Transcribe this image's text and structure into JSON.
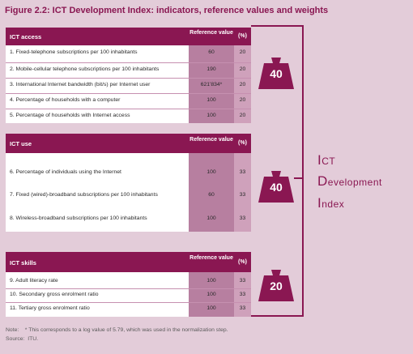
{
  "title": "Figure 2.2: ICT Development Index: indicators, reference values and weights",
  "columns": {
    "reference_value": "Reference value",
    "percent": "(%)"
  },
  "access": {
    "name": "ICT access",
    "rows": [
      {
        "label": "1. Fixed-telephone subscriptions per 100 inhabitants",
        "ref": "60",
        "pct": "20"
      },
      {
        "label": "2. Mobile-cellular telephone subscriptions per 100 inhabitants",
        "ref": "190",
        "pct": "20"
      },
      {
        "label": "3. International Internet bandwidth (bit/s) per Internet user",
        "ref": "621'834*",
        "pct": "20"
      },
      {
        "label": "4. Percentage of households with a computer",
        "ref": "100",
        "pct": "20"
      },
      {
        "label": "5. Percentage of households with Internet access",
        "ref": "100",
        "pct": "20"
      }
    ],
    "weight": "40"
  },
  "use": {
    "name": "ICT use",
    "rows": [
      {
        "label": "6. Percentage of individuals using the Internet",
        "ref": "100",
        "pct": "33"
      },
      {
        "label": "7. Fixed (wired)-broadband subscriptions per 100 inhabitants",
        "ref": "60",
        "pct": "33"
      },
      {
        "label": "8. Wireless-broadband subscriptions per 100 inhabitants",
        "ref": "100",
        "pct": "33"
      }
    ],
    "weight": "40"
  },
  "skills": {
    "name": "ICT skills",
    "rows": [
      {
        "label": "9.  Adult literacy rate",
        "ref": "100",
        "pct": "33"
      },
      {
        "label": "10. Secondary gross enrolment ratio",
        "ref": "100",
        "pct": "33"
      },
      {
        "label": "11. Tertiary gross enrolment ratio",
        "ref": "100",
        "pct": "33"
      }
    ],
    "weight": "20"
  },
  "index": {
    "line1_cap": "I",
    "line1_rest": "CT",
    "line2_cap": "D",
    "line2_rest": "evelopment",
    "line3_cap": "I",
    "line3_rest": "ndex"
  },
  "note": "Note:    * This corresponds to a log value of 5.79, which was used in the normalization step.",
  "source": "Source:  ITU.",
  "colors": {
    "brand": "#8a1752",
    "background": "#e3ccd9",
    "column_shade": "#b77fa0"
  }
}
